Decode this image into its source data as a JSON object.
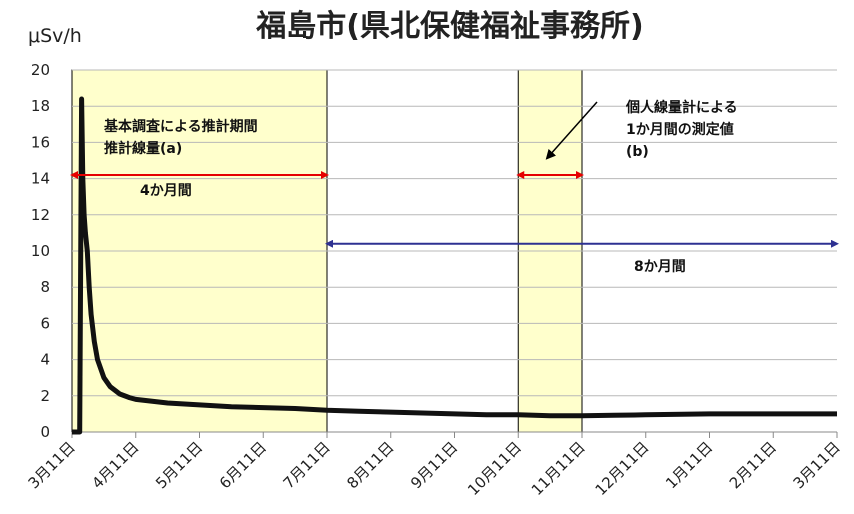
{
  "chart_data": {
    "type": "line",
    "title": "福島市(県北保健福祉事務所)",
    "ylabel": "μSv/h",
    "ylim": [
      0,
      20
    ],
    "yticks": [
      0,
      2,
      4,
      6,
      8,
      10,
      12,
      14,
      16,
      18,
      20
    ],
    "categories": [
      "3月11日",
      "4月11日",
      "5月11日",
      "6月11日",
      "7月11日",
      "8月11日",
      "9月11日",
      "10月11日",
      "11月11日",
      "12月11日",
      "1月11日",
      "2月11日",
      "3月11日"
    ],
    "grid": true,
    "series": [
      {
        "color": "#111111",
        "x": [
          0.0,
          0.12,
          0.15,
          0.17,
          0.19,
          0.21,
          0.24,
          0.27,
          0.3,
          0.35,
          0.4,
          0.5,
          0.6,
          0.75,
          0.9,
          1.0,
          1.5,
          2.0,
          2.5,
          3.0,
          3.5,
          4.0,
          4.5,
          5.0,
          5.5,
          6.0,
          6.5,
          7.0,
          7.5,
          8.0,
          8.5,
          9.0,
          10.0,
          11.0,
          12.0
        ],
        "values": [
          0.0,
          0.0,
          18.4,
          14.0,
          12.0,
          11.0,
          10.0,
          8.0,
          6.5,
          5.0,
          4.0,
          3.0,
          2.5,
          2.1,
          1.9,
          1.8,
          1.6,
          1.5,
          1.4,
          1.35,
          1.3,
          1.2,
          1.15,
          1.1,
          1.05,
          1.0,
          0.95,
          0.95,
          0.9,
          0.9,
          0.92,
          0.95,
          1.0,
          1.0,
          1.0
        ]
      }
    ],
    "shaded_periods": [
      {
        "label": "基本調査による推計期間\n推計線量(a)",
        "from": 0,
        "to": 4,
        "fill": "#ffffcc"
      },
      {
        "label": "個人線量計による\n1か月間の測定値\n(b)",
        "from": 7,
        "to": 8,
        "fill": "#ffffcc"
      }
    ],
    "annotations": [
      {
        "text": "基本調査による推計期間",
        "color": "#111111"
      },
      {
        "text": "推計線量(a)",
        "color": "#111111"
      },
      {
        "text": "4か月間",
        "color": "#111111"
      },
      {
        "text": "個人線量計による",
        "color": "#111111"
      },
      {
        "text": "1か月間の測定値",
        "color": "#111111"
      },
      {
        "text": "(b)",
        "color": "#111111"
      },
      {
        "text": "8か月間",
        "color": "#111111"
      }
    ],
    "arrows": [
      {
        "from": 0,
        "to": 4,
        "y": 14.2,
        "color": "#e60000"
      },
      {
        "from": 7,
        "to": 8,
        "y": 14.2,
        "color": "#e60000"
      },
      {
        "from": 4,
        "to": 12,
        "y": 10.4,
        "color": "#2e3192"
      }
    ]
  }
}
